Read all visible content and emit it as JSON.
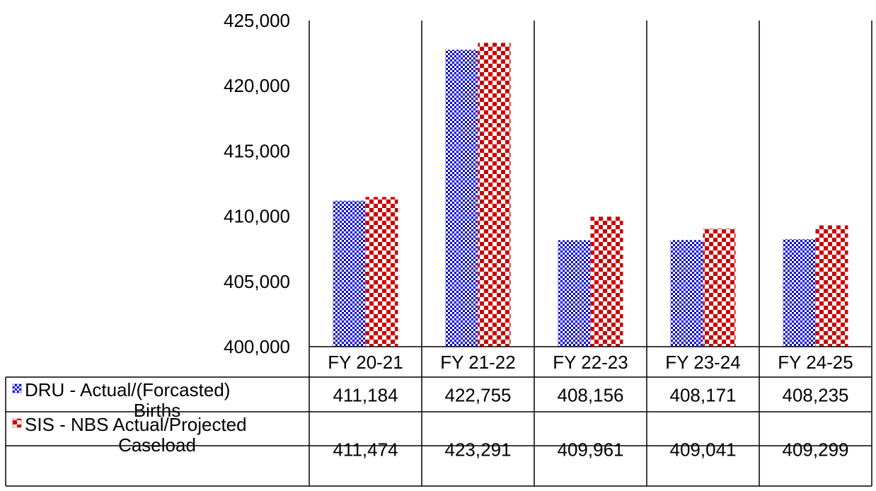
{
  "chart_data": {
    "type": "bar",
    "categories": [
      "FY 20-21",
      "FY 21-22",
      "FY 22-23",
      "FY 23-24",
      "FY 24-25"
    ],
    "series": [
      {
        "name": "DRU - Actual/(Forcasted) Births",
        "name_lines": [
          "DRU - Actual/(Forcasted)",
          "Births"
        ],
        "color": "#0000cc",
        "values": [
          411184,
          422755,
          408156,
          408171,
          408235
        ],
        "value_labels": [
          "411,184",
          "422,755",
          "408,156",
          "408,171",
          "408,235"
        ]
      },
      {
        "name": "SIS - NBS Actual/Projected Caseload",
        "name_lines": [
          "SIS - NBS Actual/Projected",
          "Caseload"
        ],
        "color": "#cc0000",
        "values": [
          411474,
          423291,
          409961,
          409041,
          409299
        ],
        "value_labels": [
          "411,474",
          "423,291",
          "409,961",
          "409,041",
          "409,299"
        ]
      }
    ],
    "ylim": [
      400000,
      425000
    ],
    "yticks": [
      400000,
      405000,
      410000,
      415000,
      420000,
      425000
    ],
    "ytick_labels": [
      "400,000",
      "405,000",
      "410,000",
      "415,000",
      "420,000",
      "425,000"
    ],
    "grid": false,
    "legend": "data-table"
  }
}
